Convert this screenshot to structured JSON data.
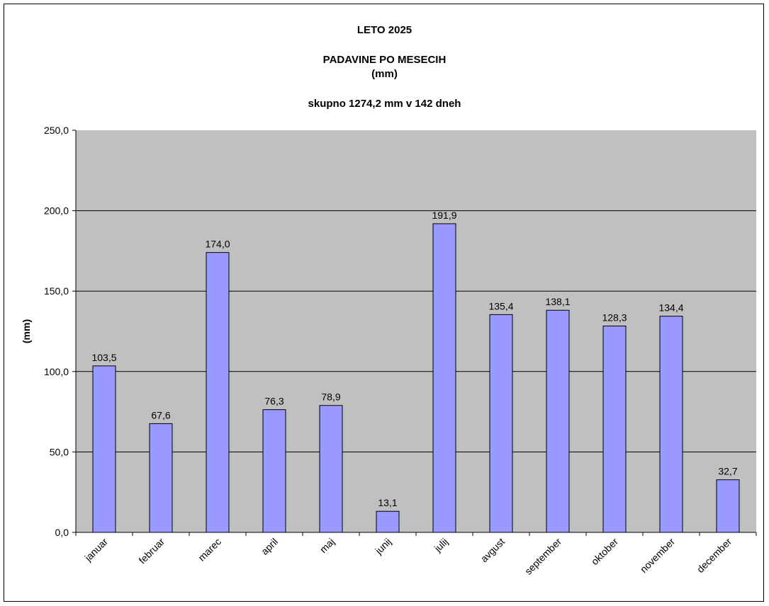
{
  "chart_data": {
    "type": "bar",
    "title_lines": [
      "LETO 2025",
      "PADAVINE PO MESECIH",
      "(mm)",
      "skupno 1274,2 mm v  142 dneh"
    ],
    "ylabel": "(mm)",
    "xlabel": "",
    "ylim": [
      0,
      250
    ],
    "yticks": [
      "0,0",
      "50,0",
      "100,0",
      "150,0",
      "200,0",
      "250,0"
    ],
    "grid": true,
    "legend": "none",
    "categories": [
      "januar",
      "februar",
      "marec",
      "april",
      "maj",
      "junij",
      "julij",
      "avgust",
      "september",
      "oktober",
      "november",
      "december"
    ],
    "values": [
      103.5,
      67.6,
      174.0,
      76.3,
      78.9,
      13.1,
      191.9,
      135.4,
      138.1,
      128.3,
      134.4,
      32.7
    ],
    "value_labels": [
      "103,5",
      "67,6",
      "174,0",
      "76,3",
      "78,9",
      "13,1",
      "191,9",
      "135,4",
      "138,1",
      "128,3",
      "134,4",
      "32,7"
    ],
    "colors": {
      "bar": "#9999ff",
      "bar_border": "#000000",
      "plot_background": "#c0c0c0",
      "gridline": "#000000"
    }
  }
}
